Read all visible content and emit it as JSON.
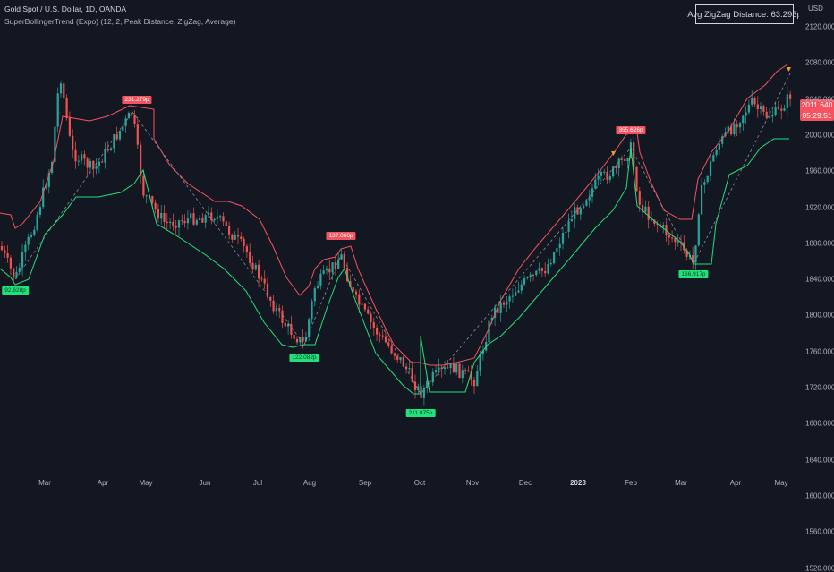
{
  "header": {
    "title": "Gold Spot / U.S. Dollar, 1D, OANDA",
    "indicator": "SuperBollingerTrend (Expo) (12, 2, Peak Distance, ZigZag, Average)"
  },
  "avg_zigzag": "Avg ZigZag Distance: 63.293p",
  "price_axis": {
    "currency": "USD",
    "ticks": [
      "2120.000",
      "2080.000",
      "2040.000",
      "2000.000",
      "1960.000",
      "1920.000",
      "1880.000",
      "1840.000",
      "1800.000",
      "1760.000",
      "1720.000",
      "1680.000",
      "1640.000",
      "1600.000",
      "1560.000",
      "1520.000"
    ]
  },
  "current_price": {
    "price": "2011.640",
    "countdown": "05:29:51"
  },
  "time_axis": [
    "Mar",
    "Apr",
    "May",
    "Jun",
    "Jul",
    "Aug",
    "Sep",
    "Oct",
    "Nov",
    "Dec",
    "2023",
    "Feb",
    "Mar",
    "Apr",
    "May"
  ],
  "peak_labels": [
    {
      "text": "92.628p",
      "type": "green"
    },
    {
      "text": "231.279p",
      "type": "red"
    },
    {
      "text": "122.082p",
      "type": "green"
    },
    {
      "text": "137.066p",
      "type": "red"
    },
    {
      "text": "211.875p",
      "type": "green"
    },
    {
      "text": "355.626p",
      "type": "red"
    },
    {
      "text": "166.917p",
      "type": "green"
    }
  ],
  "colors": {
    "background": "#131722",
    "bull_candle": "#26a69a",
    "bear_candle": "#ef5350",
    "upper_band": "#f7525f",
    "lower_band": "#22e07a",
    "label_text": "#d1d4dc"
  }
}
